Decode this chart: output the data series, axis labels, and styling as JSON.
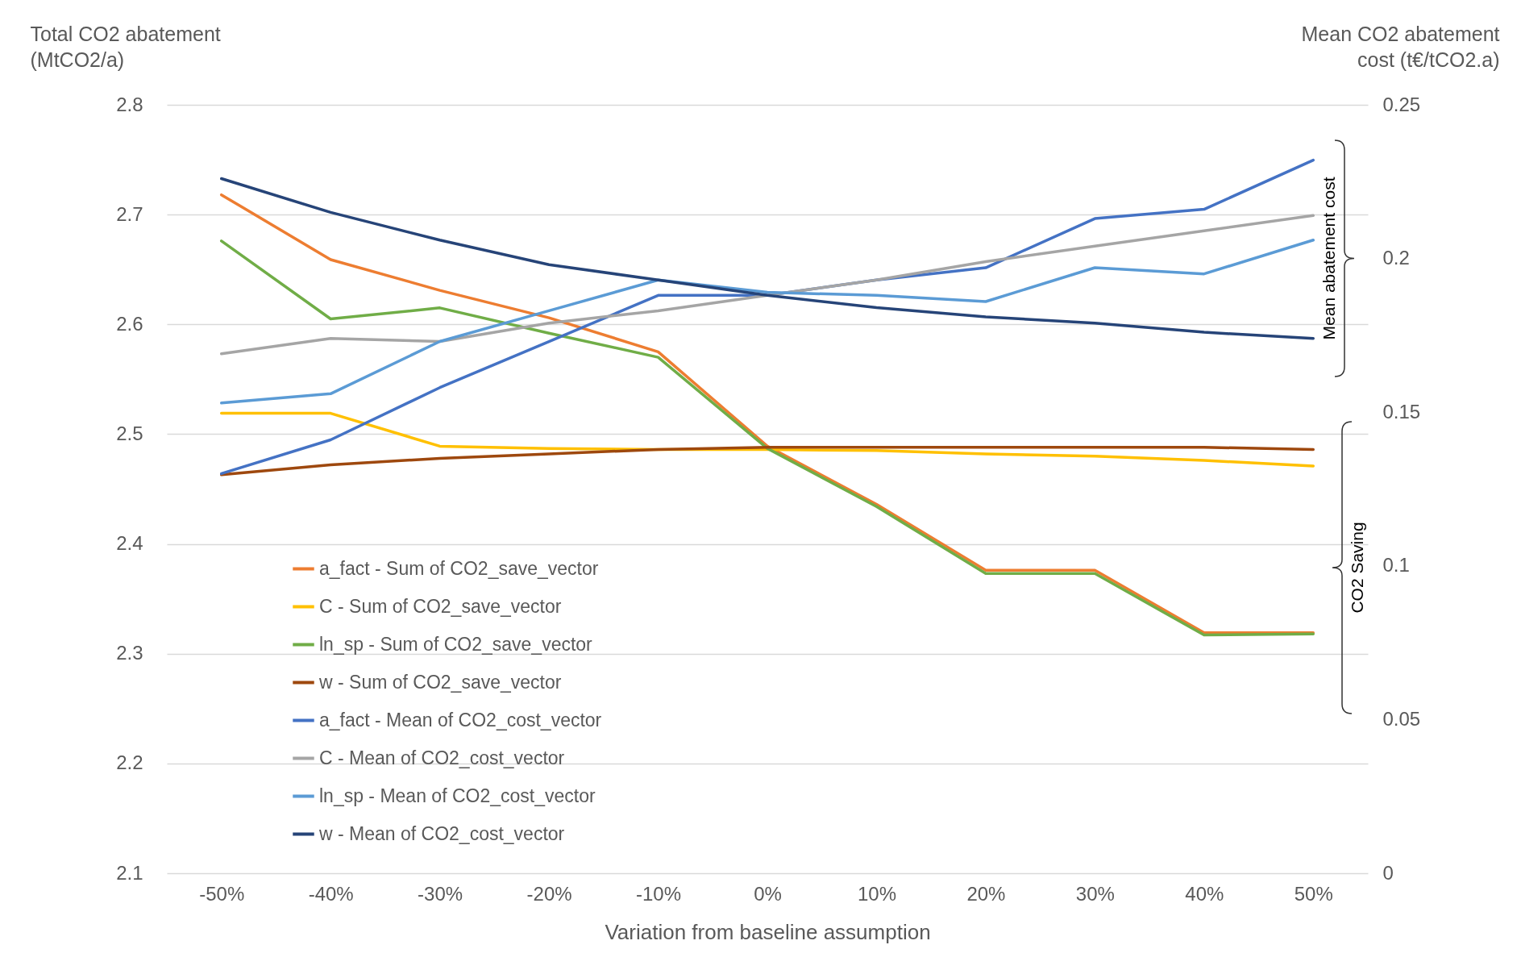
{
  "chart_data": {
    "type": "line",
    "xlabel": "Variation from baseline assumption",
    "ylabel": "Total CO2 abatement (MtCO2/a)",
    "y2label": "Mean CO2 abatement cost (t€/tCO2.a)",
    "categories": [
      "-50%",
      "-40%",
      "-30%",
      "-20%",
      "-10%",
      "0%",
      "10%",
      "20%",
      "30%",
      "40%",
      "50%"
    ],
    "series": [
      {
        "name": "a_fact - Sum of CO2_save_vector",
        "color": "#ed7d31",
        "values": [
          2.718,
          2.659,
          2.631,
          2.606,
          2.575,
          2.489,
          2.436,
          2.376,
          2.376,
          2.319,
          2.319
        ]
      },
      {
        "name": "C - Sum of CO2_save_vector",
        "color": "#ffc000",
        "values": [
          2.519,
          2.519,
          2.489,
          2.487,
          2.486,
          2.486,
          2.485,
          2.482,
          2.48,
          2.476,
          2.471
        ]
      },
      {
        "name": "ln_sp - Sum of CO2_save_vector",
        "color": "#70ad47",
        "values": [
          2.676,
          2.605,
          2.615,
          2.592,
          2.57,
          2.487,
          2.434,
          2.373,
          2.373,
          2.317,
          2.318
        ]
      },
      {
        "name": "w - Sum of CO2_save_vector",
        "color": "#9e480e",
        "values": [
          2.463,
          2.472,
          2.478,
          2.482,
          2.486,
          2.488,
          2.488,
          2.488,
          2.488,
          2.488,
          2.486
        ]
      },
      {
        "name": "a_fact - Mean of CO2_cost_vector",
        "color": "#4472c4",
        "axis": "y2",
        "values": [
          0.13,
          0.141,
          0.158,
          0.173,
          0.188,
          0.188,
          0.193,
          0.197,
          0.213,
          0.216,
          0.232
        ]
      },
      {
        "name": "C - Mean of CO2_cost_vector",
        "color": "#a5a5a5",
        "axis": "y2",
        "values": [
          0.169,
          0.174,
          0.173,
          0.179,
          0.183,
          0.188,
          0.193,
          0.199,
          0.204,
          0.209,
          0.214
        ]
      },
      {
        "name": "ln_sp - Mean of CO2_cost_vector",
        "color": "#5b9bd5",
        "axis": "y2",
        "values": [
          0.153,
          0.156,
          0.173,
          0.183,
          0.193,
          0.189,
          0.188,
          0.186,
          0.197,
          0.195,
          0.206
        ]
      },
      {
        "name": "w - Mean of CO2_cost_vector",
        "color": "#264478",
        "axis": "y2",
        "values": [
          0.226,
          0.215,
          0.206,
          0.198,
          0.193,
          0.188,
          0.184,
          0.181,
          0.179,
          0.176,
          0.174
        ]
      }
    ],
    "ylim": [
      2.1,
      2.8
    ],
    "yticks": [
      2.1,
      2.2,
      2.3,
      2.4,
      2.5,
      2.6,
      2.7,
      2.8
    ],
    "y2lim": [
      0,
      0.25
    ],
    "y2ticks": [
      0,
      0.05,
      0.1,
      0.15,
      0.2,
      0.25
    ],
    "annotations": [
      "Mean abatement cost",
      "CO2 Saving"
    ],
    "grid": "y",
    "legend": "bottom left",
    "marker": "none",
    "line_style": "solid"
  }
}
